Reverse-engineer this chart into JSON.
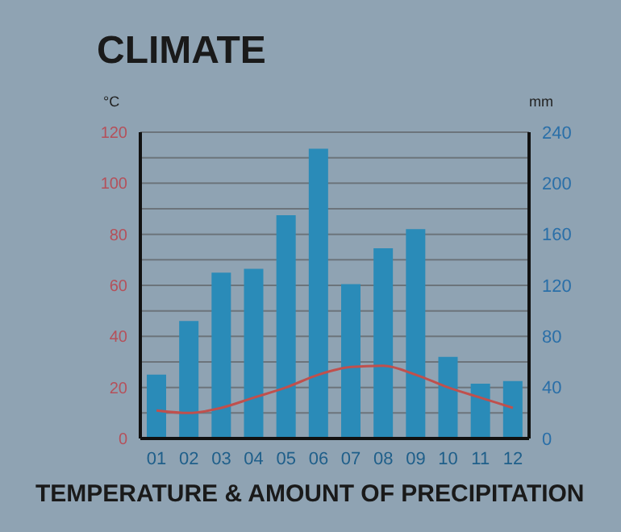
{
  "chart_data": {
    "type": "bar",
    "title": "CLIMATE",
    "ylabel": "°C",
    "y2label": "mm",
    "annotations": [
      "TEMPERATURE & AMOUNT OF PRECIPITATION"
    ],
    "categories": [
      "01",
      "02",
      "03",
      "04",
      "05",
      "06",
      "07",
      "08",
      "09",
      "10",
      "11",
      "12"
    ],
    "series": [
      {
        "axis": "y2",
        "color": "#2a8bb8",
        "values": [
          50,
          92,
          130,
          133,
          175,
          227,
          121,
          149,
          164,
          64,
          43,
          45
        ]
      },
      {
        "type": "line",
        "axis": "y",
        "color": "#c0504d",
        "values": [
          11,
          10,
          12,
          16,
          20,
          25,
          28,
          28.5,
          25,
          20,
          16,
          12
        ]
      }
    ],
    "ylim": [
      0,
      120
    ],
    "yticks": [
      0,
      {
        "value": 10,
        "label": null
      },
      20,
      {
        "value": 30,
        "label": null
      },
      40,
      {
        "value": 50,
        "label": null
      },
      60,
      {
        "value": 70,
        "label": null
      },
      80,
      {
        "value": 90,
        "label": null
      },
      100,
      {
        "value": 110,
        "label": null
      },
      120
    ],
    "y2lim": [
      0,
      240
    ],
    "y2ticks": [
      0,
      40,
      80,
      120,
      160,
      200,
      240
    ],
    "grid": "y",
    "marker": "none",
    "line_style": "solid"
  }
}
